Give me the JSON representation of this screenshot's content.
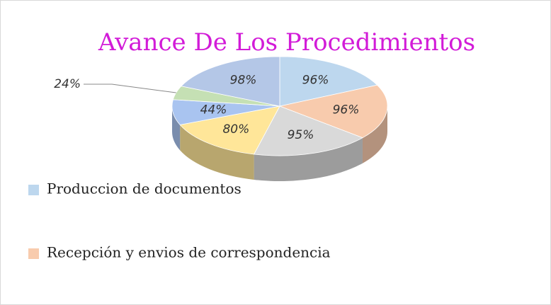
{
  "chart_data": {
    "type": "pie",
    "title": "Avance De Los Procedimientos",
    "categories": [
      "Produccion de documentos",
      "Recepción y envios de correspondencia",
      null,
      null,
      null,
      null,
      null
    ],
    "values": [
      96,
      96,
      95,
      80,
      44,
      24,
      98
    ],
    "value_labels": [
      "96%",
      "96%",
      "95%",
      "80%",
      "44%",
      "24%",
      "98%"
    ],
    "colors": [
      "#bdd7ee",
      "#f8cbad",
      "#d9d9d9",
      "#ffe699",
      "#a9c4f0",
      "#c5e0b4",
      "#b4c7e7"
    ],
    "legend": "left"
  }
}
